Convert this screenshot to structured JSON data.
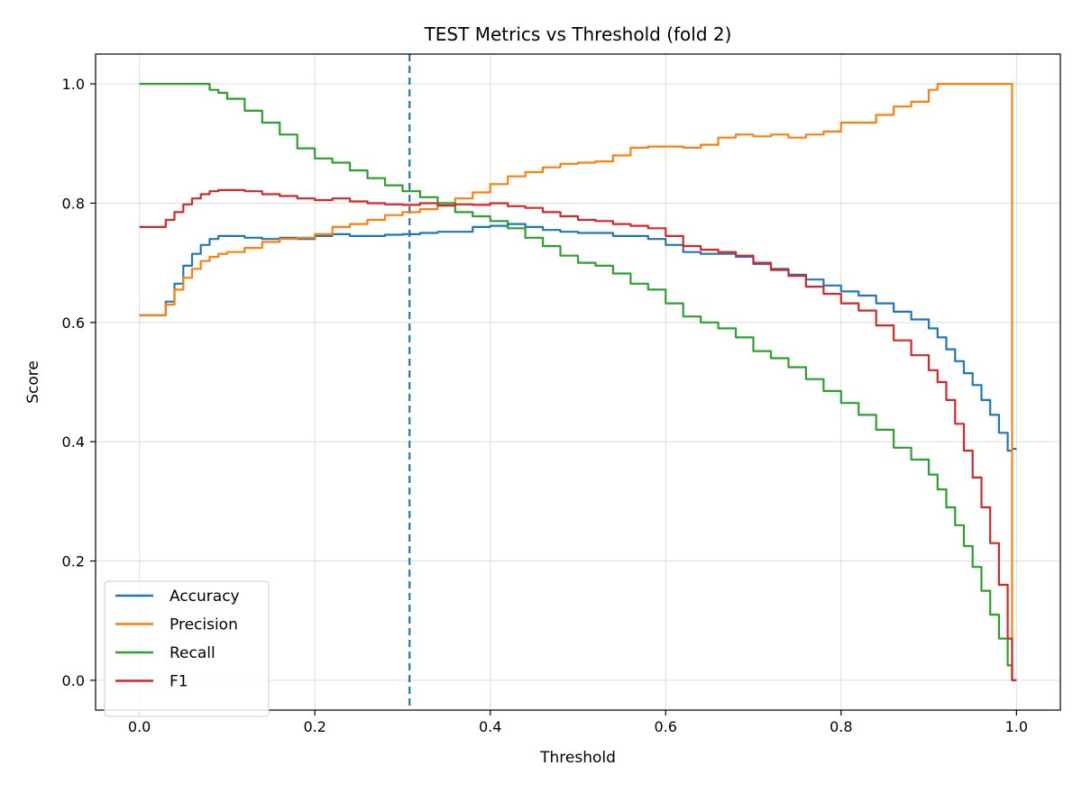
{
  "chart_data": {
    "type": "line",
    "title": "TEST Metrics vs Threshold (fold 2)",
    "xlabel": "Threshold",
    "ylabel": "Score",
    "xlim": [
      -0.05,
      1.05
    ],
    "ylim": [
      -0.05,
      1.05
    ],
    "xticks": [
      0.0,
      0.2,
      0.4,
      0.6,
      0.8,
      1.0
    ],
    "xtick_labels": [
      "0.0",
      "0.2",
      "0.4",
      "0.6",
      "0.8",
      "1.0"
    ],
    "yticks": [
      0.0,
      0.2,
      0.4,
      0.6,
      0.8,
      1.0
    ],
    "ytick_labels": [
      "0.0",
      "0.2",
      "0.4",
      "0.6",
      "0.8",
      "1.0"
    ],
    "grid": true,
    "legend_position": "lower-left",
    "threshold_line": 0.308,
    "threshold_color": "#1f77b4",
    "series": [
      {
        "name": "Accuracy",
        "color": "#1f77b4",
        "x": [
          0.0,
          0.02,
          0.03,
          0.04,
          0.05,
          0.06,
          0.07,
          0.08,
          0.09,
          0.1,
          0.12,
          0.14,
          0.16,
          0.18,
          0.2,
          0.22,
          0.24,
          0.26,
          0.28,
          0.3,
          0.32,
          0.34,
          0.36,
          0.38,
          0.4,
          0.42,
          0.44,
          0.46,
          0.48,
          0.5,
          0.52,
          0.54,
          0.56,
          0.58,
          0.6,
          0.62,
          0.64,
          0.66,
          0.68,
          0.7,
          0.72,
          0.74,
          0.76,
          0.78,
          0.8,
          0.82,
          0.84,
          0.86,
          0.88,
          0.9,
          0.91,
          0.92,
          0.93,
          0.94,
          0.95,
          0.96,
          0.97,
          0.98,
          0.99,
          0.995,
          1.0
        ],
        "y": [
          0.612,
          0.612,
          0.635,
          0.665,
          0.695,
          0.715,
          0.73,
          0.74,
          0.745,
          0.745,
          0.742,
          0.74,
          0.742,
          0.74,
          0.745,
          0.748,
          0.745,
          0.745,
          0.747,
          0.748,
          0.75,
          0.752,
          0.752,
          0.76,
          0.762,
          0.765,
          0.76,
          0.755,
          0.752,
          0.75,
          0.75,
          0.745,
          0.745,
          0.74,
          0.73,
          0.718,
          0.715,
          0.715,
          0.71,
          0.698,
          0.69,
          0.68,
          0.672,
          0.662,
          0.652,
          0.645,
          0.632,
          0.618,
          0.605,
          0.59,
          0.575,
          0.555,
          0.535,
          0.515,
          0.495,
          0.47,
          0.445,
          0.415,
          0.385,
          0.388,
          0.388
        ]
      },
      {
        "name": "Precision",
        "color": "#ff7f0e",
        "x": [
          0.0,
          0.02,
          0.03,
          0.04,
          0.05,
          0.06,
          0.07,
          0.08,
          0.09,
          0.1,
          0.12,
          0.14,
          0.16,
          0.18,
          0.2,
          0.22,
          0.24,
          0.26,
          0.28,
          0.3,
          0.32,
          0.34,
          0.36,
          0.38,
          0.4,
          0.42,
          0.44,
          0.46,
          0.48,
          0.5,
          0.52,
          0.54,
          0.56,
          0.58,
          0.6,
          0.62,
          0.64,
          0.66,
          0.68,
          0.7,
          0.72,
          0.74,
          0.76,
          0.78,
          0.8,
          0.82,
          0.84,
          0.86,
          0.88,
          0.9,
          0.91,
          0.92,
          0.94,
          0.96,
          0.98,
          0.994,
          0.995,
          1.0
        ],
        "y": [
          0.612,
          0.612,
          0.63,
          0.655,
          0.675,
          0.69,
          0.703,
          0.71,
          0.715,
          0.718,
          0.725,
          0.735,
          0.74,
          0.742,
          0.748,
          0.76,
          0.765,
          0.772,
          0.78,
          0.785,
          0.79,
          0.8,
          0.808,
          0.818,
          0.832,
          0.845,
          0.852,
          0.86,
          0.866,
          0.868,
          0.87,
          0.88,
          0.893,
          0.895,
          0.895,
          0.893,
          0.898,
          0.91,
          0.915,
          0.912,
          0.915,
          0.91,
          0.915,
          0.92,
          0.935,
          0.935,
          0.948,
          0.962,
          0.97,
          0.99,
          1.0,
          1.0,
          1.0,
          1.0,
          1.0,
          1.0,
          0.0,
          0.0
        ]
      },
      {
        "name": "Recall",
        "color": "#2ca02c",
        "x": [
          0.0,
          0.02,
          0.04,
          0.06,
          0.08,
          0.09,
          0.1,
          0.12,
          0.14,
          0.16,
          0.18,
          0.2,
          0.22,
          0.24,
          0.26,
          0.28,
          0.3,
          0.32,
          0.34,
          0.36,
          0.38,
          0.4,
          0.42,
          0.44,
          0.46,
          0.48,
          0.5,
          0.52,
          0.54,
          0.56,
          0.58,
          0.6,
          0.62,
          0.64,
          0.66,
          0.68,
          0.7,
          0.72,
          0.74,
          0.76,
          0.78,
          0.8,
          0.82,
          0.84,
          0.86,
          0.88,
          0.9,
          0.91,
          0.92,
          0.93,
          0.94,
          0.95,
          0.96,
          0.97,
          0.98,
          0.99,
          0.995
        ],
        "y": [
          1.0,
          1.0,
          1.0,
          1.0,
          0.99,
          0.985,
          0.975,
          0.955,
          0.935,
          0.915,
          0.892,
          0.875,
          0.868,
          0.855,
          0.842,
          0.83,
          0.82,
          0.81,
          0.8,
          0.785,
          0.778,
          0.77,
          0.758,
          0.742,
          0.728,
          0.712,
          0.7,
          0.695,
          0.682,
          0.665,
          0.655,
          0.632,
          0.61,
          0.6,
          0.59,
          0.575,
          0.552,
          0.54,
          0.525,
          0.505,
          0.485,
          0.465,
          0.445,
          0.42,
          0.39,
          0.37,
          0.345,
          0.32,
          0.29,
          0.26,
          0.225,
          0.19,
          0.15,
          0.11,
          0.07,
          0.025,
          0.0
        ]
      },
      {
        "name": "F1",
        "color": "#d62728",
        "x": [
          0.0,
          0.02,
          0.03,
          0.04,
          0.05,
          0.06,
          0.07,
          0.08,
          0.09,
          0.1,
          0.12,
          0.14,
          0.16,
          0.18,
          0.2,
          0.22,
          0.24,
          0.26,
          0.28,
          0.3,
          0.32,
          0.34,
          0.36,
          0.38,
          0.4,
          0.42,
          0.44,
          0.46,
          0.48,
          0.5,
          0.52,
          0.54,
          0.56,
          0.58,
          0.6,
          0.62,
          0.64,
          0.66,
          0.68,
          0.7,
          0.72,
          0.74,
          0.76,
          0.78,
          0.8,
          0.82,
          0.84,
          0.86,
          0.88,
          0.9,
          0.91,
          0.92,
          0.93,
          0.94,
          0.95,
          0.96,
          0.97,
          0.98,
          0.99,
          0.995,
          1.0
        ],
        "y": [
          0.76,
          0.76,
          0.772,
          0.785,
          0.798,
          0.808,
          0.815,
          0.82,
          0.822,
          0.822,
          0.82,
          0.815,
          0.812,
          0.808,
          0.805,
          0.808,
          0.803,
          0.8,
          0.798,
          0.797,
          0.8,
          0.796,
          0.798,
          0.797,
          0.8,
          0.795,
          0.792,
          0.785,
          0.778,
          0.772,
          0.77,
          0.765,
          0.762,
          0.758,
          0.745,
          0.728,
          0.722,
          0.718,
          0.712,
          0.7,
          0.688,
          0.678,
          0.66,
          0.648,
          0.632,
          0.62,
          0.595,
          0.57,
          0.545,
          0.52,
          0.5,
          0.47,
          0.43,
          0.385,
          0.34,
          0.29,
          0.23,
          0.16,
          0.07,
          0.0,
          0.0
        ]
      }
    ]
  }
}
